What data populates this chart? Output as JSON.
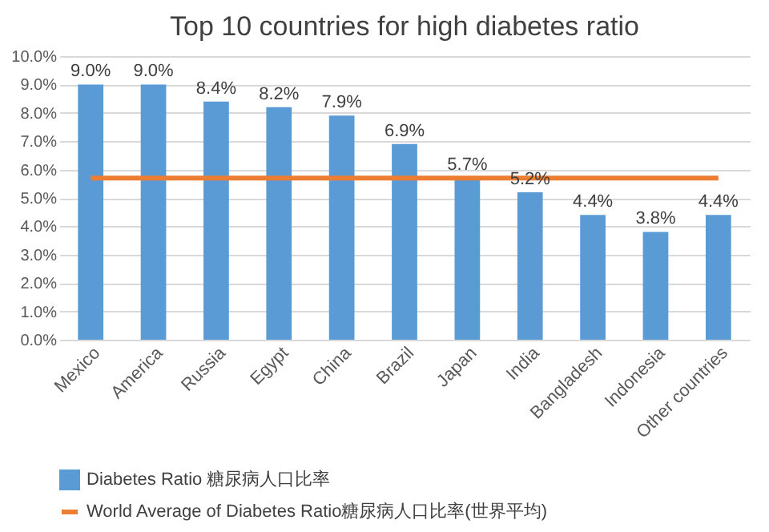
{
  "chart_data": {
    "type": "bar",
    "title": "Top 10 countries for high diabetes ratio",
    "categories": [
      "Mexico",
      "America",
      "Russia",
      "Egypt",
      "China",
      "Brazil",
      "Japan",
      "India",
      "Bangladesh",
      "Indonesia",
      "Other countries"
    ],
    "series": [
      {
        "name": "Diabetes Ratio 糖尿病人口比率",
        "color": "#5b9bd5",
        "values": [
          9.0,
          9.0,
          8.4,
          8.2,
          7.9,
          6.9,
          5.7,
          5.2,
          4.4,
          3.8,
          4.4
        ],
        "value_labels": [
          "9.0%",
          "9.0%",
          "8.4%",
          "8.2%",
          "7.9%",
          "6.9%",
          "5.7%",
          "5.2%",
          "4.4%",
          "3.8%",
          "4.4%"
        ]
      },
      {
        "name": "World Average of Diabetes Ratio糖尿病人口比率(世界平均)",
        "type": "line",
        "color": "#ed7d31",
        "values": [
          5.7,
          5.7,
          5.7,
          5.7,
          5.7,
          5.7,
          5.7,
          5.7,
          5.7,
          5.7,
          5.7
        ]
      }
    ],
    "ylim": [
      0,
      10
    ],
    "yticks": [
      {
        "value": 0,
        "label": "0.0%"
      },
      {
        "value": 1,
        "label": "1.0%"
      },
      {
        "value": 2,
        "label": "2.0%"
      },
      {
        "value": 3,
        "label": "3.0%"
      },
      {
        "value": 4,
        "label": "4.0%"
      },
      {
        "value": 5,
        "label": "5.0%"
      },
      {
        "value": 6,
        "label": "6.0%"
      },
      {
        "value": 7,
        "label": "7.0%"
      },
      {
        "value": 8,
        "label": "8.0%"
      },
      {
        "value": 9,
        "label": "9.0%"
      },
      {
        "value": 10,
        "label": "10.0%"
      }
    ],
    "grid": "y",
    "legend": "bottom"
  }
}
